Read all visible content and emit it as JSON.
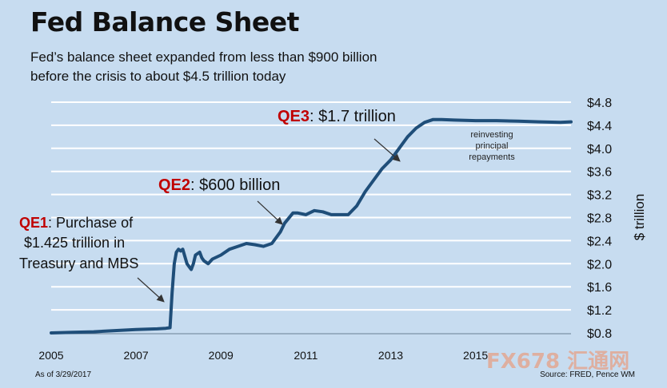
{
  "title": "Fed Balance Sheet",
  "subtitle": [
    "Fed’s balance sheet expanded from less than $900 billion",
    "before the crisis to about $4.5 trillion today"
  ],
  "as_of": "As of 3/29/2017",
  "source": "Source: FRED, Pence WM",
  "watermark": "FX678 汇通网",
  "colors": {
    "background": "#c7dcf0",
    "line": "#1f4e79",
    "qe_label": "#c00000",
    "grid": "#ffffff"
  },
  "chart_data": {
    "type": "line",
    "title": "Fed Balance Sheet",
    "ylabel": "$ trillion",
    "ylim": [
      0.8,
      4.8
    ],
    "yticks": [
      0.8,
      1.2,
      1.6,
      2.0,
      2.4,
      2.8,
      3.2,
      3.6,
      4.0,
      4.4,
      4.8
    ],
    "ytick_labels": [
      "$0.8",
      "$1.2",
      "$1.6",
      "$2.0",
      "$2.4",
      "$2.8",
      "$3.2",
      "$3.6",
      "$4.0",
      "$4.4",
      "$4.8"
    ],
    "xlim": [
      2005.0,
      2017.25
    ],
    "xticks": [
      2005,
      2007,
      2009,
      2011,
      2013,
      2015
    ],
    "xtick_labels": [
      "2005",
      "2007",
      "2009",
      "2011",
      "2013",
      "2015"
    ],
    "grid": true,
    "series": [
      {
        "x": [
          2005.0,
          2005.5,
          2006.0,
          2006.5,
          2007.0,
          2007.5,
          2007.7,
          2007.8,
          2007.85,
          2007.9,
          2007.95,
          2008.0,
          2008.05,
          2008.1,
          2008.2,
          2008.25,
          2008.3,
          2008.35,
          2008.4,
          2008.5,
          2008.55,
          2008.6,
          2008.7,
          2008.8,
          2009.0,
          2009.2,
          2009.4,
          2009.6,
          2009.8,
          2010.0,
          2010.2,
          2010.4,
          2010.5,
          2010.7,
          2010.8,
          2011.0,
          2011.2,
          2011.4,
          2011.6,
          2011.8,
          2012.0,
          2012.2,
          2012.4,
          2012.6,
          2012.8,
          2013.0,
          2013.2,
          2013.4,
          2013.6,
          2013.8,
          2014.0,
          2014.2,
          2014.5,
          2015.0,
          2015.5,
          2016.0,
          2016.5,
          2017.0,
          2017.25
        ],
        "y": [
          0.8,
          0.81,
          0.82,
          0.84,
          0.86,
          0.87,
          0.88,
          0.89,
          1.5,
          2.0,
          2.2,
          2.25,
          2.22,
          2.25,
          2.0,
          1.95,
          1.9,
          2.0,
          2.15,
          2.2,
          2.1,
          2.05,
          2.0,
          2.08,
          2.15,
          2.25,
          2.3,
          2.35,
          2.33,
          2.3,
          2.35,
          2.55,
          2.7,
          2.88,
          2.88,
          2.85,
          2.92,
          2.9,
          2.85,
          2.85,
          2.85,
          3.0,
          3.25,
          3.45,
          3.65,
          3.8,
          4.0,
          4.2,
          4.35,
          4.45,
          4.5,
          4.5,
          4.49,
          4.48,
          4.48,
          4.47,
          4.46,
          4.45,
          4.46
        ]
      }
    ],
    "annotations": [
      {
        "tag": "QE1",
        "lines": [
          ": Purchase of",
          "$1.425 trillion in",
          "Treasury and MBS"
        ]
      },
      {
        "tag": "QE2",
        "text": ": $600 billion"
      },
      {
        "tag": "QE3",
        "text": ": $1.7 trillion"
      },
      {
        "lines": [
          "reinvesting",
          "principal",
          "repayments"
        ]
      }
    ]
  }
}
